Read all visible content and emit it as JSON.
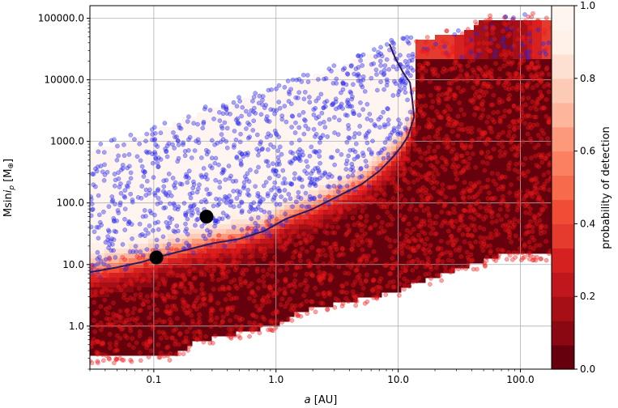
{
  "chart_data": {
    "type": "heatmap",
    "xlabel_pre": "a",
    "xlabel_post": " [AU]",
    "ylabel_pre": "Msin",
    "ylabel_i": "i",
    "ylabel_sub": "p",
    "ylabel_post": " [M",
    "ylabel_sym": "⊕",
    "ylabel_end": "]",
    "xscale": "log",
    "yscale": "log",
    "xlim": [
      0.03,
      180
    ],
    "ylim": [
      0.2,
      160000
    ],
    "xticks": [
      0.1,
      1.0,
      10.0,
      100.0
    ],
    "xtick_labels": [
      "0.1",
      "1.0",
      "10.0",
      "100.0"
    ],
    "yticks": [
      1,
      10,
      100,
      1000,
      10000,
      100000
    ],
    "ytick_labels": [
      "1.0",
      "10.0",
      "100.0",
      "1000.0",
      "10000.0",
      "100000.0"
    ],
    "grid": true,
    "colorbar": {
      "label": "probability of detection",
      "ticks": [
        0.0,
        0.2,
        0.4,
        0.6,
        0.8,
        1.0
      ],
      "tick_labels": [
        "0.0",
        "0.2",
        "0.4",
        "0.6",
        "0.8",
        "1.0"
      ],
      "colors": [
        "#67000d",
        "#8a0812",
        "#a50f15",
        "#c0171e",
        "#d52221",
        "#e53b2f",
        "#f14c36",
        "#f86a4c",
        "#fb7f61",
        "#fc997a",
        "#fdb59b",
        "#fdcab5",
        "#fee0d2",
        "#fff0e8",
        "#fff5f0"
      ]
    },
    "detection_contour": {
      "x": [
        0.03,
        0.05,
        0.08,
        0.12,
        0.2,
        0.3,
        0.5,
        0.8,
        1.2,
        2.0,
        3.0,
        5.0,
        7.0,
        9.0,
        10.5,
        12.0,
        13.5,
        13.0,
        12.5,
        11.0,
        9.5,
        8.8,
        8.5
      ],
      "y": [
        7.5,
        9,
        11,
        14,
        18,
        22,
        26,
        35,
        55,
        80,
        120,
        200,
        330,
        550,
        800,
        1200,
        2500,
        5000,
        9000,
        13000,
        22000,
        32000,
        38000
      ]
    },
    "planets": [
      {
        "a": 0.105,
        "m": 13
      },
      {
        "a": 0.27,
        "m": 60
      }
    ],
    "populations": [
      {
        "name": "",
        "color": "#2323ee"
      },
      {
        "name": "",
        "color": "#ee1a1a"
      }
    ]
  }
}
